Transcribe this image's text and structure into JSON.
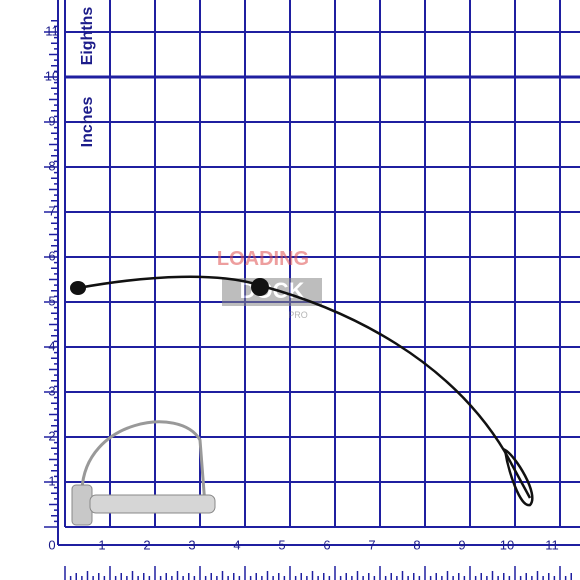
{
  "ruler": {
    "vertical_unit_labels": [
      "Eighths",
      "Inches"
    ],
    "y_labels": [
      "1",
      "2",
      "3",
      "4",
      "5",
      "6",
      "7",
      "8",
      "9",
      "10",
      "11"
    ],
    "x_labels": [
      "0",
      "1",
      "2",
      "3",
      "4",
      "5",
      "6",
      "7",
      "8",
      "9",
      "10",
      "11"
    ]
  },
  "watermark": {
    "line1": "LOADING",
    "line2": "DOCK",
    "line3": "PRO"
  }
}
